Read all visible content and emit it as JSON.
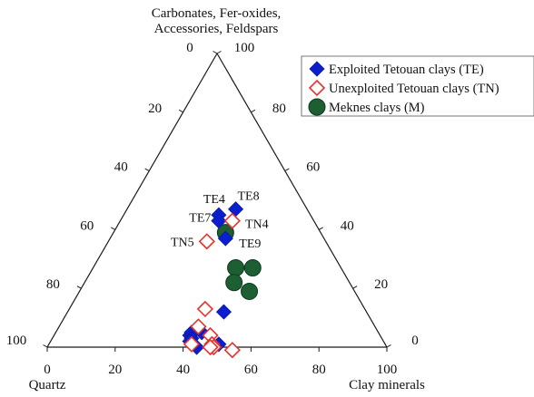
{
  "chart_data": {
    "type": "scatter",
    "subtype": "ternary",
    "title": "",
    "apex_labels": {
      "top": [
        "Carbonates, Fer-oxides,",
        "Accessories, Feldspars"
      ],
      "left": "Quartz",
      "right": "Clay minerals"
    },
    "axis_ticks": {
      "bottom": [
        "0",
        "20",
        "40",
        "60",
        "80",
        "100"
      ],
      "left": [
        "0",
        "20",
        "40",
        "60",
        "80",
        "100"
      ],
      "right": [
        "100",
        "80",
        "60",
        "40",
        "20",
        "0"
      ]
    },
    "legend": {
      "position": "top-right",
      "entries": [
        {
          "key": "TE",
          "label": "Exploited Tetouan clays (TE)",
          "marker": "diamond-filled",
          "color": "#0b1fd0"
        },
        {
          "key": "TN",
          "label": "Unexploited Tetouan clays (TN)",
          "marker": "diamond-open",
          "color": "#e8312a"
        },
        {
          "key": "M",
          "label": "Meknes clays (M)",
          "marker": "circle-filled",
          "color": "#1d5e32"
        }
      ]
    },
    "units": "%",
    "series": [
      {
        "key": "TE",
        "points": [
          {
            "top": 47,
            "clay": 32,
            "label": "TE8"
          },
          {
            "top": 45,
            "clay": 28,
            "label": "TE4"
          },
          {
            "top": 37,
            "clay": 34,
            "label": "TE9"
          },
          {
            "top": 43,
            "clay": 29
          },
          {
            "top": 12,
            "clay": 46
          },
          {
            "top": 5,
            "clay": 43
          },
          {
            "top": 4,
            "clay": 40
          },
          {
            "top": 5,
            "clay": 40
          },
          {
            "top": 3,
            "clay": 41
          },
          {
            "top": 2,
            "clay": 41
          },
          {
            "top": 0,
            "clay": 44
          },
          {
            "top": 1,
            "clay": 50
          }
        ]
      },
      {
        "key": "TN",
        "points": [
          {
            "top": 43,
            "clay": 33,
            "label": "TN4"
          },
          {
            "top": 36,
            "clay": 29,
            "label": "TN5"
          },
          {
            "top": 13,
            "clay": 40
          },
          {
            "top": 7,
            "clay": 41
          },
          {
            "top": 4,
            "clay": 46
          },
          {
            "top": 1,
            "clay": 42
          },
          {
            "top": 1,
            "clay": 48
          },
          {
            "top": 0,
            "clay": 49
          },
          {
            "top": 0,
            "clay": 48
          },
          {
            "top": -1,
            "clay": 55
          }
        ]
      },
      {
        "key": "M",
        "points": [
          {
            "top": 39,
            "clay": 33,
            "label": "TE7"
          },
          {
            "top": 27,
            "clay": 42
          },
          {
            "top": 27,
            "clay": 47
          },
          {
            "top": 22,
            "clay": 44
          },
          {
            "top": 19,
            "clay": 50
          }
        ]
      }
    ]
  }
}
